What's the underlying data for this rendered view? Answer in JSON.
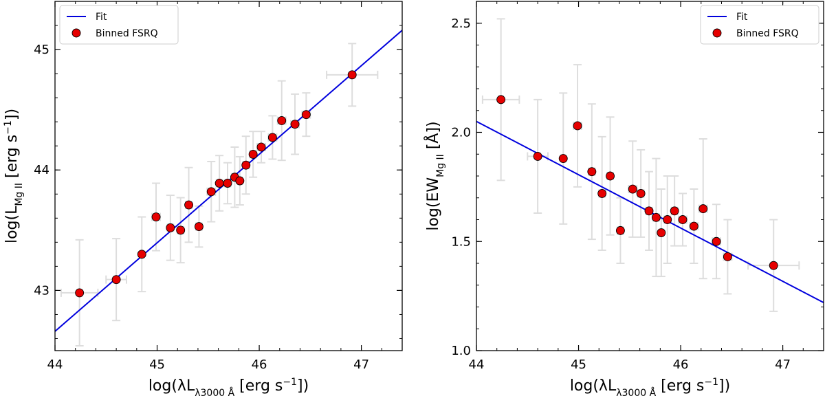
{
  "chart_data": [
    {
      "type": "scatter",
      "panel": "left",
      "xlabel": "log(λL_λ3000 Å [erg s^-1])",
      "xlabel_parts": {
        "pre": "log(λL",
        "sub": "λ3000 Å",
        "mid": " [erg s",
        "sup": "−1",
        "post": "])"
      },
      "ylabel": "log(L_Mg II [erg s^-1])",
      "ylabel_parts": {
        "pre": "log(L",
        "sub": "Mg II",
        "mid": " [erg s",
        "sup": "−1",
        "post": "])"
      },
      "xlim": [
        44.0,
        47.4
      ],
      "ylim": [
        42.5,
        45.4
      ],
      "xticks": [
        44,
        45,
        46,
        47
      ],
      "yticks": [
        43,
        44,
        45
      ],
      "xtick_labels": [
        "44",
        "45",
        "46",
        "47"
      ],
      "ytick_labels": [
        "43",
        "44",
        "45"
      ],
      "legend": {
        "position": "top-left",
        "entries": [
          "Fit",
          "Binned FSRQ"
        ]
      },
      "fit": {
        "label": "Fit",
        "color": "#0000dd",
        "x": [
          44.0,
          47.4
        ],
        "y": [
          42.66,
          45.16
        ]
      },
      "series": [
        {
          "name": "Binned FSRQ",
          "color": "#e60000",
          "x": [
            44.24,
            44.6,
            44.85,
            44.99,
            45.13,
            45.23,
            45.31,
            45.41,
            45.53,
            45.61,
            45.69,
            45.76,
            45.81,
            45.87,
            45.94,
            46.02,
            46.13,
            46.22,
            46.35,
            46.46,
            46.91
          ],
          "y": [
            42.98,
            43.09,
            43.3,
            43.61,
            43.52,
            43.5,
            43.71,
            43.53,
            43.82,
            43.89,
            43.89,
            43.94,
            43.91,
            44.04,
            44.13,
            44.19,
            44.27,
            44.41,
            44.38,
            44.46,
            44.79
          ],
          "xerr": [
            0.18,
            0.1,
            0.02,
            0.04,
            0.03,
            0.03,
            0.03,
            0.03,
            0.04,
            0.03,
            0.03,
            0.03,
            0.02,
            0.03,
            0.03,
            0.04,
            0.04,
            0.04,
            0.04,
            0.04,
            0.25
          ],
          "yerr": [
            0.44,
            0.34,
            0.31,
            0.28,
            0.27,
            0.27,
            0.31,
            0.17,
            0.25,
            0.23,
            0.17,
            0.25,
            0.2,
            0.24,
            0.19,
            0.13,
            0.18,
            0.33,
            0.25,
            0.18,
            0.26
          ]
        }
      ]
    },
    {
      "type": "scatter",
      "panel": "right",
      "xlabel": "log(λL_λ3000 Å [erg s^-1])",
      "xlabel_parts": {
        "pre": "log(λL",
        "sub": "λ3000 Å",
        "mid": " [erg s",
        "sup": "−1",
        "post": "])"
      },
      "ylabel": "log(EW_Mg II [Å])",
      "ylabel_parts": {
        "pre": "log(EW",
        "sub": "Mg II",
        "mid": " [Å])",
        "sup": "",
        "post": ""
      },
      "xlim": [
        44.0,
        47.4
      ],
      "ylim": [
        1.0,
        2.6
      ],
      "xticks": [
        44,
        45,
        46,
        47
      ],
      "yticks": [
        1.0,
        1.5,
        2.0,
        2.5
      ],
      "xtick_labels": [
        "44",
        "45",
        "46",
        "47"
      ],
      "ytick_labels": [
        "1.0",
        "1.5",
        "2.0",
        "2.5"
      ],
      "legend": {
        "position": "top-right",
        "entries": [
          "Fit",
          "Binned FSRQ"
        ]
      },
      "fit": {
        "label": "Fit",
        "color": "#0000dd",
        "x": [
          44.0,
          47.4
        ],
        "y": [
          2.05,
          1.22
        ]
      },
      "series": [
        {
          "name": "Binned FSRQ",
          "color": "#e60000",
          "x": [
            44.24,
            44.6,
            44.85,
            44.99,
            45.13,
            45.23,
            45.31,
            45.41,
            45.53,
            45.61,
            45.69,
            45.76,
            45.81,
            45.87,
            45.94,
            46.02,
            46.13,
            46.22,
            46.35,
            46.46,
            46.91
          ],
          "y": [
            2.15,
            1.89,
            1.88,
            2.03,
            1.82,
            1.72,
            1.8,
            1.55,
            1.74,
            1.72,
            1.64,
            1.61,
            1.54,
            1.6,
            1.64,
            1.6,
            1.57,
            1.65,
            1.5,
            1.43,
            1.39
          ],
          "xerr": [
            0.18,
            0.1,
            0.02,
            0.04,
            0.03,
            0.03,
            0.03,
            0.03,
            0.04,
            0.03,
            0.03,
            0.03,
            0.02,
            0.03,
            0.03,
            0.04,
            0.04,
            0.04,
            0.04,
            0.04,
            0.25
          ],
          "yerr": [
            0.37,
            0.26,
            0.3,
            0.28,
            0.31,
            0.26,
            0.27,
            0.15,
            0.22,
            0.2,
            0.18,
            0.27,
            0.2,
            0.2,
            0.16,
            0.12,
            0.17,
            0.32,
            0.17,
            0.17,
            0.21
          ]
        }
      ]
    }
  ]
}
